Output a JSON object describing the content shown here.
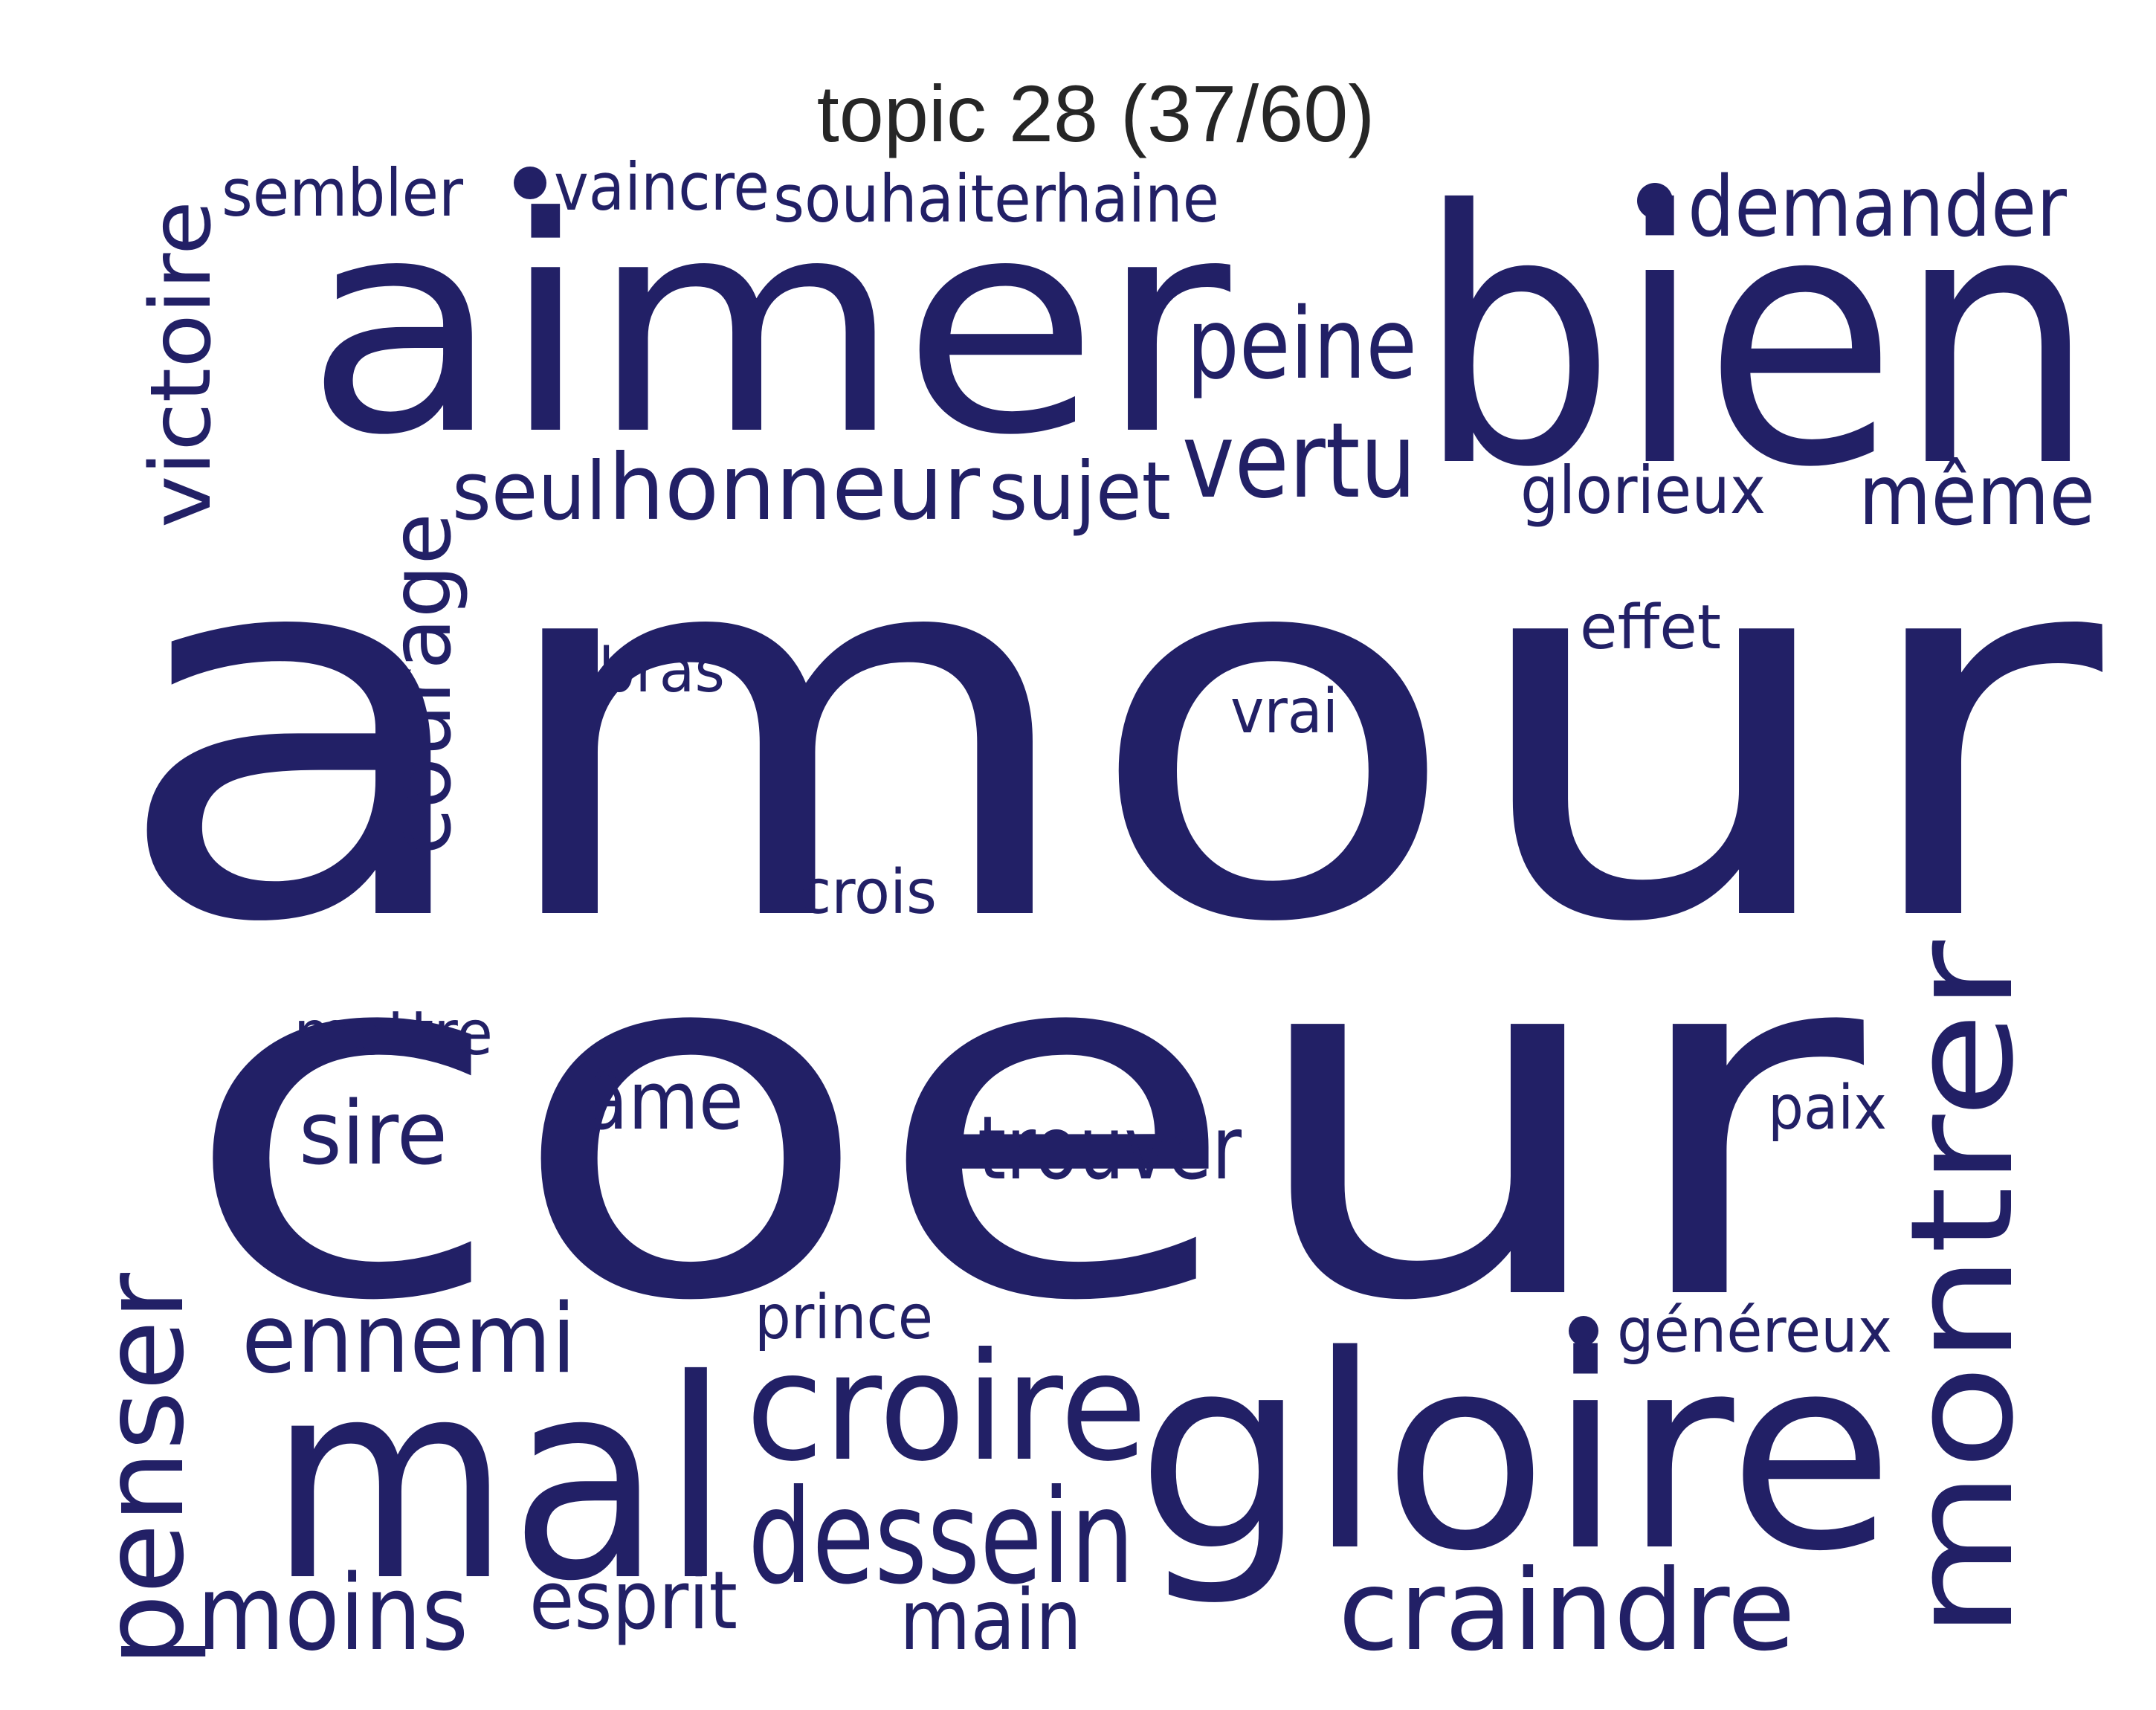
{
  "title": "topic 28 (37/60)",
  "colors": {
    "word": "#222066",
    "title": "#262626",
    "background": "#ffffff"
  },
  "words": [
    {
      "text": "amour",
      "rotation": "horizontal"
    },
    {
      "text": "coeur",
      "rotation": "horizontal"
    },
    {
      "text": "bien",
      "rotation": "horizontal"
    },
    {
      "text": "aimer",
      "rotation": "horizontal"
    },
    {
      "text": "gloire",
      "rotation": "horizontal"
    },
    {
      "text": "mal",
      "rotation": "horizontal"
    },
    {
      "text": "montrer",
      "rotation": "vertical"
    },
    {
      "text": "croire",
      "rotation": "horizontal"
    },
    {
      "text": "dessein",
      "rotation": "horizontal"
    },
    {
      "text": "craindre",
      "rotation": "horizontal"
    },
    {
      "text": "penser",
      "rotation": "vertical"
    },
    {
      "text": "victoire",
      "rotation": "vertical"
    },
    {
      "text": "courage",
      "rotation": "vertical"
    },
    {
      "text": "honneur",
      "rotation": "horizontal"
    },
    {
      "text": "vertu",
      "rotation": "horizontal"
    },
    {
      "text": "peine",
      "rotation": "horizontal"
    },
    {
      "text": "moins",
      "rotation": "horizontal"
    },
    {
      "text": "ennemi",
      "rotation": "horizontal"
    },
    {
      "text": "demander",
      "rotation": "horizontal"
    },
    {
      "text": "même",
      "rotation": "horizontal"
    },
    {
      "text": "sire",
      "rotation": "horizontal"
    },
    {
      "text": "trouver",
      "rotation": "horizontal"
    },
    {
      "text": "main",
      "rotation": "horizontal"
    },
    {
      "text": "esprit",
      "rotation": "horizontal"
    },
    {
      "text": "sujet",
      "rotation": "horizontal"
    },
    {
      "text": "seul",
      "rotation": "horizontal"
    },
    {
      "text": "âme",
      "rotation": "horizontal"
    },
    {
      "text": "souhaiter",
      "rotation": "horizontal"
    },
    {
      "text": "haine",
      "rotation": "horizontal"
    },
    {
      "text": "sembler",
      "rotation": "horizontal"
    },
    {
      "text": "vaincre",
      "rotation": "horizontal"
    },
    {
      "text": "glorieux",
      "rotation": "horizontal"
    },
    {
      "text": "mettre",
      "rotation": "horizontal"
    },
    {
      "text": "bras",
      "rotation": "horizontal"
    },
    {
      "text": "effet",
      "rotation": "horizontal"
    },
    {
      "text": "vrai",
      "rotation": "horizontal"
    },
    {
      "text": "crois",
      "rotation": "horizontal"
    },
    {
      "text": "prince",
      "rotation": "horizontal"
    },
    {
      "text": "paix",
      "rotation": "horizontal"
    },
    {
      "text": "généreux",
      "rotation": "horizontal"
    }
  ]
}
